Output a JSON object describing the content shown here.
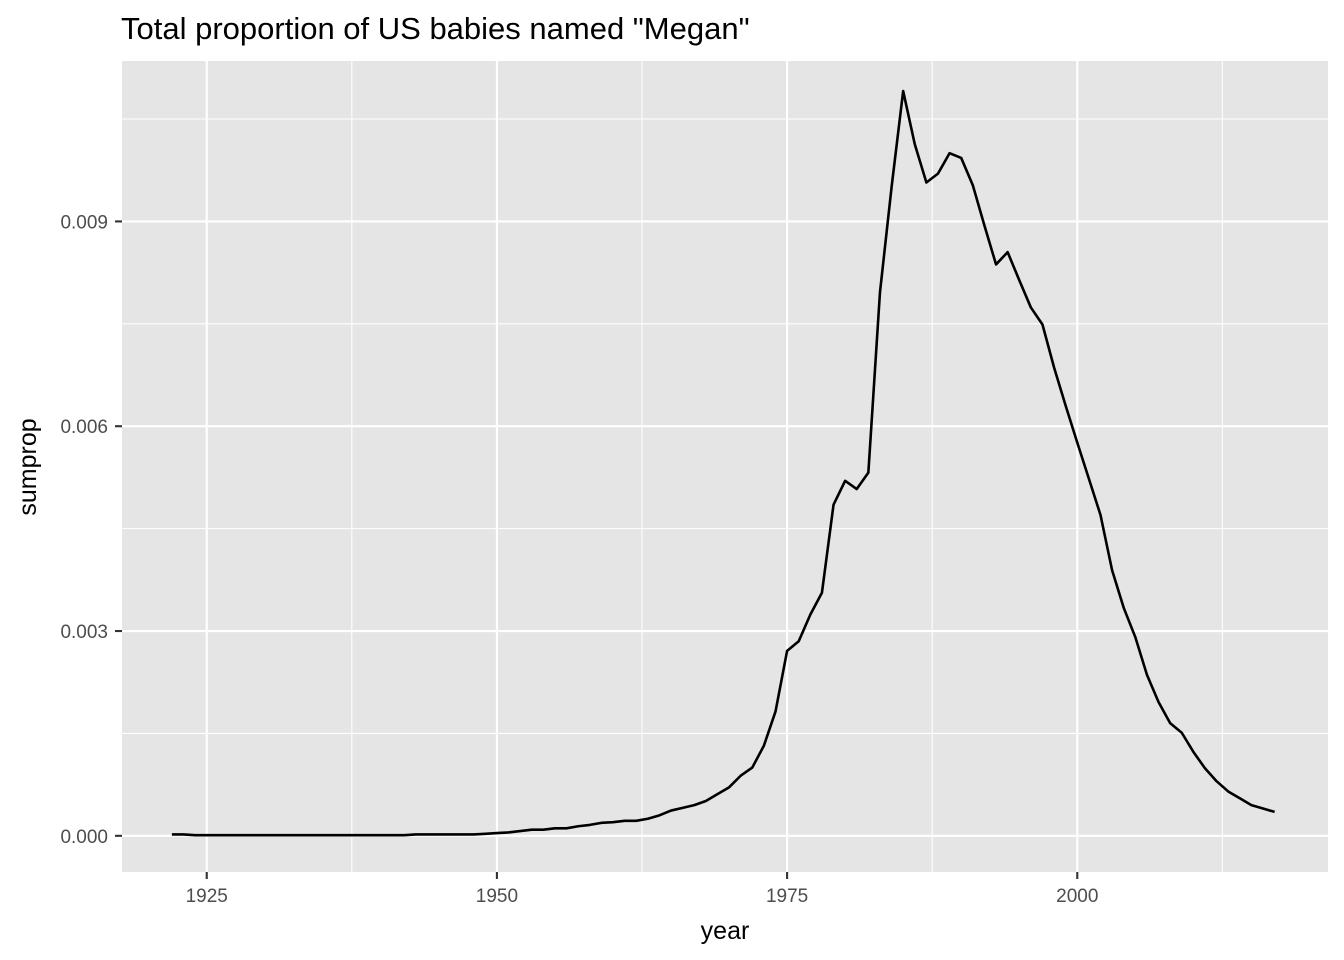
{
  "chart_data": {
    "type": "line",
    "title": "Total proportion of US babies named \"Megan\"",
    "xlabel": "year",
    "ylabel": "sumprop",
    "xlim": [
      1917.7,
      2021.6
    ],
    "ylim": [
      -0.00053,
      0.01135
    ],
    "x_ticks": [
      1925,
      1950,
      1975,
      2000
    ],
    "x_tick_labels": [
      "1925",
      "1950",
      "1975",
      "2000"
    ],
    "x_minor_ticks": [
      1937.5,
      1962.5,
      1987.5,
      2012.5
    ],
    "y_ticks": [
      0.0,
      0.003,
      0.006,
      0.009
    ],
    "y_tick_labels": [
      "0.000",
      "0.003",
      "0.006",
      "0.009"
    ],
    "y_minor_ticks": [
      0.0015,
      0.0045,
      0.0075,
      0.0105
    ],
    "grid": true,
    "legend": "none",
    "colors": {
      "panel_background": "#e5e5e5",
      "grid": "#ffffff",
      "line": "#000000",
      "tick_label": "#4d4d4d"
    },
    "series": [
      {
        "x": [
          1922,
          1923,
          1924,
          1925,
          1926,
          1927,
          1928,
          1929,
          1930,
          1931,
          1932,
          1933,
          1934,
          1935,
          1936,
          1937,
          1938,
          1939,
          1940,
          1941,
          1942,
          1943,
          1944,
          1945,
          1946,
          1947,
          1948,
          1949,
          1950,
          1951,
          1952,
          1953,
          1954,
          1955,
          1956,
          1957,
          1958,
          1959,
          1960,
          1961,
          1962,
          1963,
          1964,
          1965,
          1966,
          1967,
          1968,
          1969,
          1970,
          1971,
          1972,
          1973,
          1974,
          1975,
          1976,
          1977,
          1978,
          1979,
          1980,
          1981,
          1982,
          1983,
          1984,
          1985,
          1986,
          1987,
          1988,
          1989,
          1990,
          1991,
          1992,
          1993,
          1994,
          1995,
          1996,
          1997,
          1998,
          1999,
          2000,
          2001,
          2002,
          2003,
          2004,
          2005,
          2006,
          2007,
          2008,
          2009,
          2010,
          2011,
          2012,
          2013,
          2014,
          2015,
          2016,
          2017
        ],
        "y": [
          2e-05,
          2e-05,
          1e-05,
          1e-05,
          1e-05,
          1e-05,
          1e-05,
          1e-05,
          1e-05,
          1e-05,
          1e-05,
          1e-05,
          1e-05,
          1e-05,
          1e-05,
          1e-05,
          1e-05,
          1e-05,
          1e-05,
          1e-05,
          1e-05,
          2e-05,
          2e-05,
          2e-05,
          2e-05,
          2e-05,
          2e-05,
          3e-05,
          4e-05,
          5e-05,
          7e-05,
          9e-05,
          9e-05,
          0.00011,
          0.00011,
          0.00014,
          0.00016,
          0.00019,
          0.0002,
          0.00022,
          0.00022,
          0.00025,
          0.0003,
          0.00037,
          0.00041,
          0.00045,
          0.00051,
          0.00061,
          0.00071,
          0.00088,
          0.001,
          0.00132,
          0.00182,
          0.00271,
          0.00285,
          0.00324,
          0.00356,
          0.00485,
          0.0052,
          0.00508,
          0.00532,
          0.00796,
          0.0095,
          0.01091,
          0.01013,
          0.00957,
          0.0097,
          0.01,
          0.00993,
          0.00953,
          0.00894,
          0.00837,
          0.00855,
          0.00814,
          0.00774,
          0.00749,
          0.00686,
          0.0063,
          0.00576,
          0.00523,
          0.0047,
          0.00389,
          0.00334,
          0.00291,
          0.00236,
          0.00196,
          0.00165,
          0.00151,
          0.00123,
          0.00099,
          0.0008,
          0.00065,
          0.00055,
          0.00045,
          0.0004,
          0.00035
        ]
      }
    ]
  }
}
